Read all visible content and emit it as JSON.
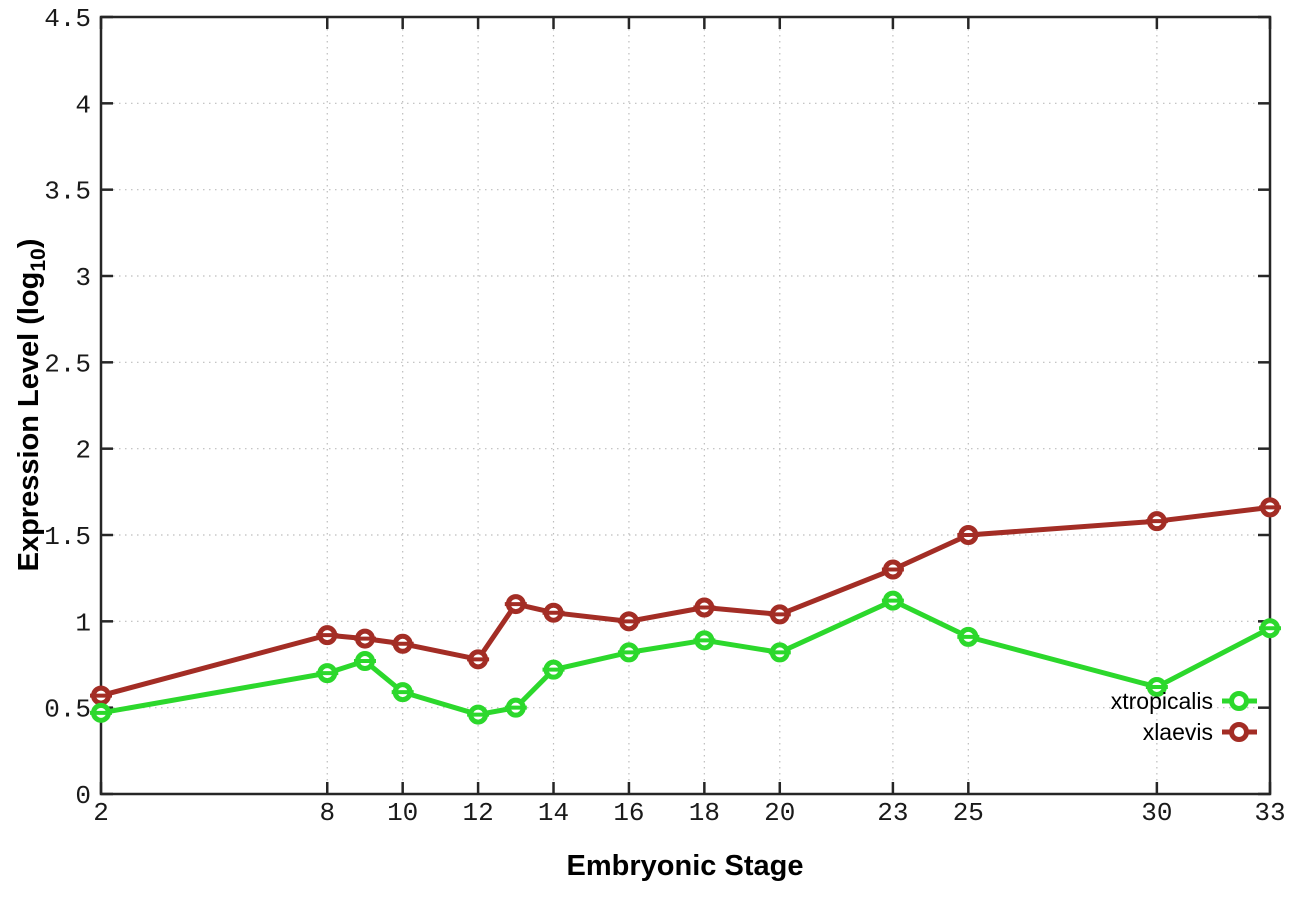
{
  "chart_data": {
    "type": "line",
    "title": "",
    "xlabel": "Embryonic Stage",
    "ylabel": {
      "prefix": "Expression Level (log",
      "subscript": "10",
      "suffix": ")"
    },
    "xlim": [
      2,
      33
    ],
    "ylim": [
      0,
      4.5
    ],
    "grid": true,
    "legend_position": "inside-bottom-right",
    "marker_style": "open-circle-with-error-bar",
    "x_ticks": [
      {
        "value": 2,
        "label": "2"
      },
      {
        "value": 8,
        "label": "8"
      },
      {
        "value": 10,
        "label": "10"
      },
      {
        "value": 12,
        "label": "12"
      },
      {
        "value": 14,
        "label": "14"
      },
      {
        "value": 16,
        "label": "16"
      },
      {
        "value": 18,
        "label": "18"
      },
      {
        "value": 20,
        "label": "20"
      },
      {
        "value": 23,
        "label": "23"
      },
      {
        "value": 25,
        "label": "25"
      },
      {
        "value": 30,
        "label": "30"
      },
      {
        "value": 33,
        "label": "33"
      }
    ],
    "y_ticks": [
      {
        "value": 0,
        "label": "0"
      },
      {
        "value": 0.5,
        "label": "0.5"
      },
      {
        "value": 1,
        "label": "1"
      },
      {
        "value": 1.5,
        "label": "1.5"
      },
      {
        "value": 2,
        "label": "2"
      },
      {
        "value": 2.5,
        "label": "2.5"
      },
      {
        "value": 3,
        "label": "3"
      },
      {
        "value": 3.5,
        "label": "3.5"
      },
      {
        "value": 4,
        "label": "4"
      },
      {
        "value": 4.5,
        "label": "4.5"
      }
    ],
    "x": [
      2,
      8,
      9,
      10,
      12,
      13,
      14,
      16,
      18,
      20,
      23,
      25,
      30,
      33
    ],
    "series": [
      {
        "name": "xlaevis",
        "color": "#a32d25",
        "values": [
          0.57,
          0.92,
          0.9,
          0.87,
          0.78,
          1.1,
          1.05,
          1.0,
          1.08,
          1.04,
          1.3,
          1.5,
          1.58,
          1.66
        ]
      },
      {
        "name": "xtropicalis",
        "color": "#2cd82c",
        "values": [
          0.47,
          0.7,
          0.77,
          0.59,
          0.46,
          0.5,
          0.72,
          0.82,
          0.89,
          0.82,
          1.12,
          0.91,
          0.62,
          0.96
        ]
      }
    ],
    "legend_entries": [
      "xtropicalis",
      "xlaevis"
    ],
    "colors": {
      "border": "#262626",
      "grid": "#bdbdbd",
      "tick_text": "#1a1a1a",
      "background": "#ffffff"
    }
  }
}
